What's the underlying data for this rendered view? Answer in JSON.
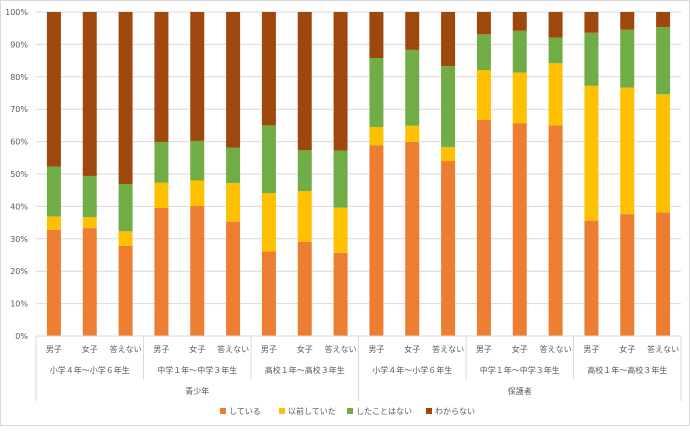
{
  "chart_data": {
    "type": "bar",
    "stacked": "percent",
    "ylim": [
      0,
      100
    ],
    "yticks": [
      "0%",
      "10%",
      "20%",
      "30%",
      "40%",
      "50%",
      "60%",
      "70%",
      "80%",
      "90%",
      "100%"
    ],
    "grid": true,
    "legend_position": "bottom",
    "categories": [
      "男子",
      "女子",
      "答えない",
      "男子",
      "女子",
      "答えない",
      "男子",
      "女子",
      "答えない",
      "男子",
      "女子",
      "答えない",
      "男子",
      "女子",
      "答えない",
      "男子",
      "女子",
      "答えない"
    ],
    "groups": [
      "小学４年～小学６年生",
      "中学１年～中学３年生",
      "高校１年～高校３年生",
      "小学４年～小学６年生",
      "中学１年～中学３年生",
      "高校１年～高校３年生"
    ],
    "top_groups": [
      "青少年",
      "保護者"
    ],
    "series": [
      {
        "name": "している",
        "color": "#ED7D31",
        "values": [
          32.8,
          33.3,
          27.8,
          39.6,
          40.1,
          35.3,
          26.1,
          29.1,
          25.7,
          58.9,
          59.9,
          54.0,
          66.7,
          65.7,
          65.0,
          35.6,
          37.6,
          38.1
        ]
      },
      {
        "name": "以前していた",
        "color": "#FFC000",
        "values": [
          4.1,
          3.4,
          4.5,
          7.7,
          7.9,
          11.9,
          18.0,
          15.6,
          13.9,
          5.6,
          5.0,
          4.3,
          15.4,
          15.6,
          19.2,
          41.6,
          39.1,
          36.5
        ]
      },
      {
        "name": "したことはない",
        "color": "#70AD47",
        "values": [
          15.4,
          12.7,
          14.6,
          12.6,
          12.2,
          10.9,
          20.9,
          12.6,
          17.6,
          21.3,
          23.4,
          25.0,
          11.0,
          12.9,
          7.9,
          16.4,
          17.8,
          20.7
        ]
      },
      {
        "name": "わからない",
        "color": "#9E480E",
        "values": [
          47.7,
          50.6,
          53.1,
          40.1,
          39.8,
          41.9,
          35.0,
          42.7,
          42.8,
          14.2,
          11.7,
          16.7,
          6.9,
          5.8,
          7.9,
          6.4,
          5.5,
          4.7
        ]
      }
    ]
  }
}
